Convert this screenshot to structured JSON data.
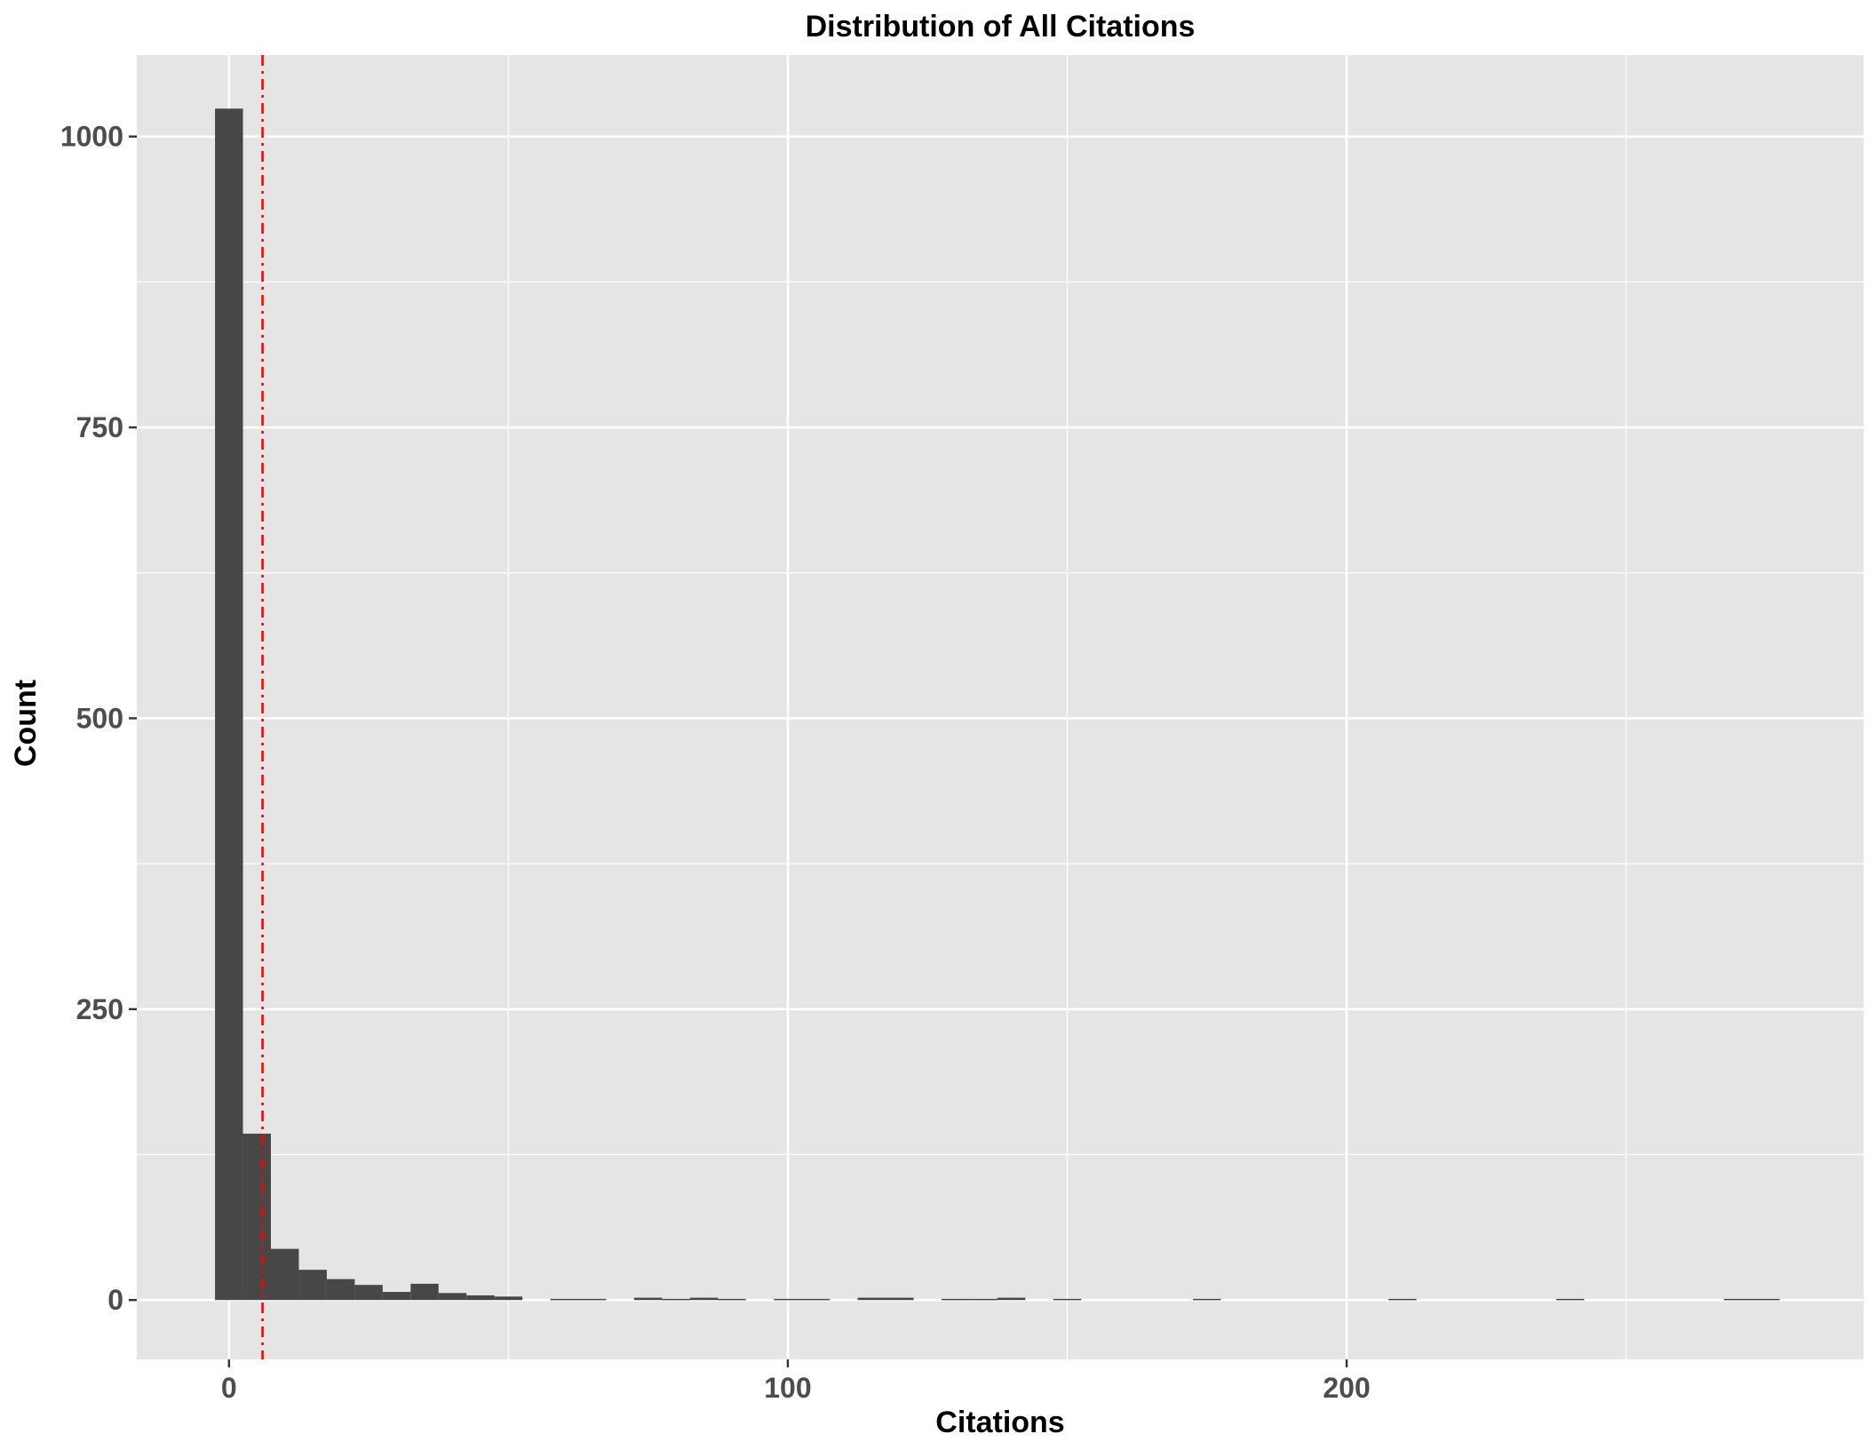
{
  "chart_data": {
    "type": "bar",
    "title": "Distribution of All Citations",
    "xlabel": "Citations",
    "ylabel": "Count",
    "xlim": [
      -16.5,
      292.5
    ],
    "ylim": [
      -51,
      1070
    ],
    "x_ticks": [
      0,
      100,
      200
    ],
    "y_ticks": [
      0,
      250,
      500,
      750,
      1000
    ],
    "bin_width": 5,
    "bins": [
      {
        "start": -2.5,
        "count": 1024
      },
      {
        "start": 2.5,
        "count": 143
      },
      {
        "start": 7.5,
        "count": 44
      },
      {
        "start": 12.5,
        "count": 26
      },
      {
        "start": 17.5,
        "count": 18
      },
      {
        "start": 22.5,
        "count": 13
      },
      {
        "start": 27.5,
        "count": 7
      },
      {
        "start": 32.5,
        "count": 14
      },
      {
        "start": 37.5,
        "count": 6
      },
      {
        "start": 42.5,
        "count": 4
      },
      {
        "start": 47.5,
        "count": 3
      },
      {
        "start": 57.5,
        "count": 1
      },
      {
        "start": 62.5,
        "count": 1
      },
      {
        "start": 72.5,
        "count": 2
      },
      {
        "start": 77.5,
        "count": 1
      },
      {
        "start": 82.5,
        "count": 2
      },
      {
        "start": 87.5,
        "count": 1
      },
      {
        "start": 97.5,
        "count": 1
      },
      {
        "start": 102.5,
        "count": 1
      },
      {
        "start": 112.5,
        "count": 2
      },
      {
        "start": 117.5,
        "count": 2
      },
      {
        "start": 127.5,
        "count": 1
      },
      {
        "start": 132.5,
        "count": 1
      },
      {
        "start": 137.5,
        "count": 2
      },
      {
        "start": 147.5,
        "count": 1
      },
      {
        "start": 172.5,
        "count": 1
      },
      {
        "start": 207.5,
        "count": 1
      },
      {
        "start": 237.5,
        "count": 1
      },
      {
        "start": 267.5,
        "count": 1
      },
      {
        "start": 272.5,
        "count": 1
      }
    ],
    "reference_line": {
      "x": 6,
      "orientation": "vertical",
      "style": "dash-dot",
      "color": "#ff0000"
    },
    "grid": true,
    "legend": "none",
    "colors": {
      "bar": "#474747",
      "panel_background": "#e5e5e5",
      "grid": "#ffffff",
      "tick_label": "#4d4d4d"
    }
  }
}
